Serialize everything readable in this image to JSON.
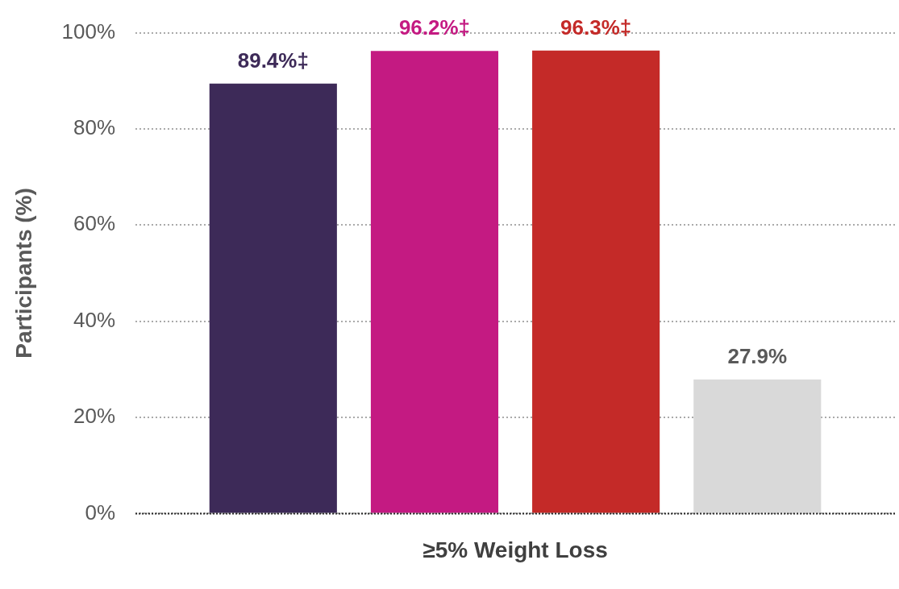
{
  "chart_data": {
    "type": "bar",
    "ylabel": "Participants (%)",
    "categories": [
      "≥5% Weight Loss"
    ],
    "series": [
      {
        "color": "#3d2a58",
        "values": [
          89.4
        ],
        "value_labels": [
          "89.4%‡"
        ]
      },
      {
        "color": "#c41a82",
        "values": [
          96.2
        ],
        "value_labels": [
          "96.2%‡"
        ]
      },
      {
        "color": "#c42a28",
        "values": [
          96.3
        ],
        "value_labels": [
          "96.3%‡"
        ]
      },
      {
        "color": "#d9d9d9",
        "values": [
          27.9
        ],
        "value_labels": [
          "27.9%"
        ]
      }
    ],
    "ylim": [
      0,
      100
    ],
    "yticks": [
      {
        "value": 0,
        "label": "0%"
      },
      {
        "value": 20,
        "label": "20%"
      },
      {
        "value": 40,
        "label": "40%"
      },
      {
        "value": 60,
        "label": "60%"
      },
      {
        "value": 80,
        "label": "80%"
      },
      {
        "value": 100,
        "label": "100%"
      }
    ],
    "grid": "y",
    "legend": false
  }
}
